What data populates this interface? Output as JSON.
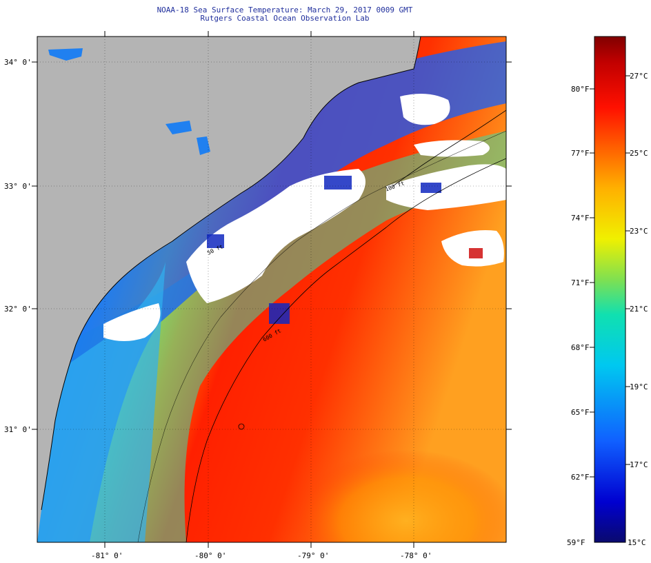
{
  "header": {
    "title": "NOAA-18 Sea Surface Temperature:  March 29, 2017 0009 GMT",
    "subtitle": "Rutgers Coastal Ocean Observation Lab"
  },
  "map": {
    "lat_labels": [
      "34° 0'",
      "33° 0'",
      "32° 0'",
      "31° 0'"
    ],
    "lon_labels": [
      "-81° 0'",
      "-80° 0'",
      "-79° 0'",
      "-78° 0'"
    ],
    "isobath_labels": [
      "100 ft",
      "50 ft",
      "600 ft"
    ],
    "colors": {
      "land": "#b4b4b4",
      "cloud": "#ffffff",
      "coast": "#000000"
    }
  },
  "colorbar": {
    "fahrenheit": [
      "80°F",
      "77°F",
      "74°F",
      "71°F",
      "68°F",
      "65°F",
      "62°F",
      "59°F"
    ],
    "celsius": [
      "27°C",
      "25°C",
      "23°C",
      "21°C",
      "19°C",
      "17°C",
      "15°C"
    ]
  }
}
